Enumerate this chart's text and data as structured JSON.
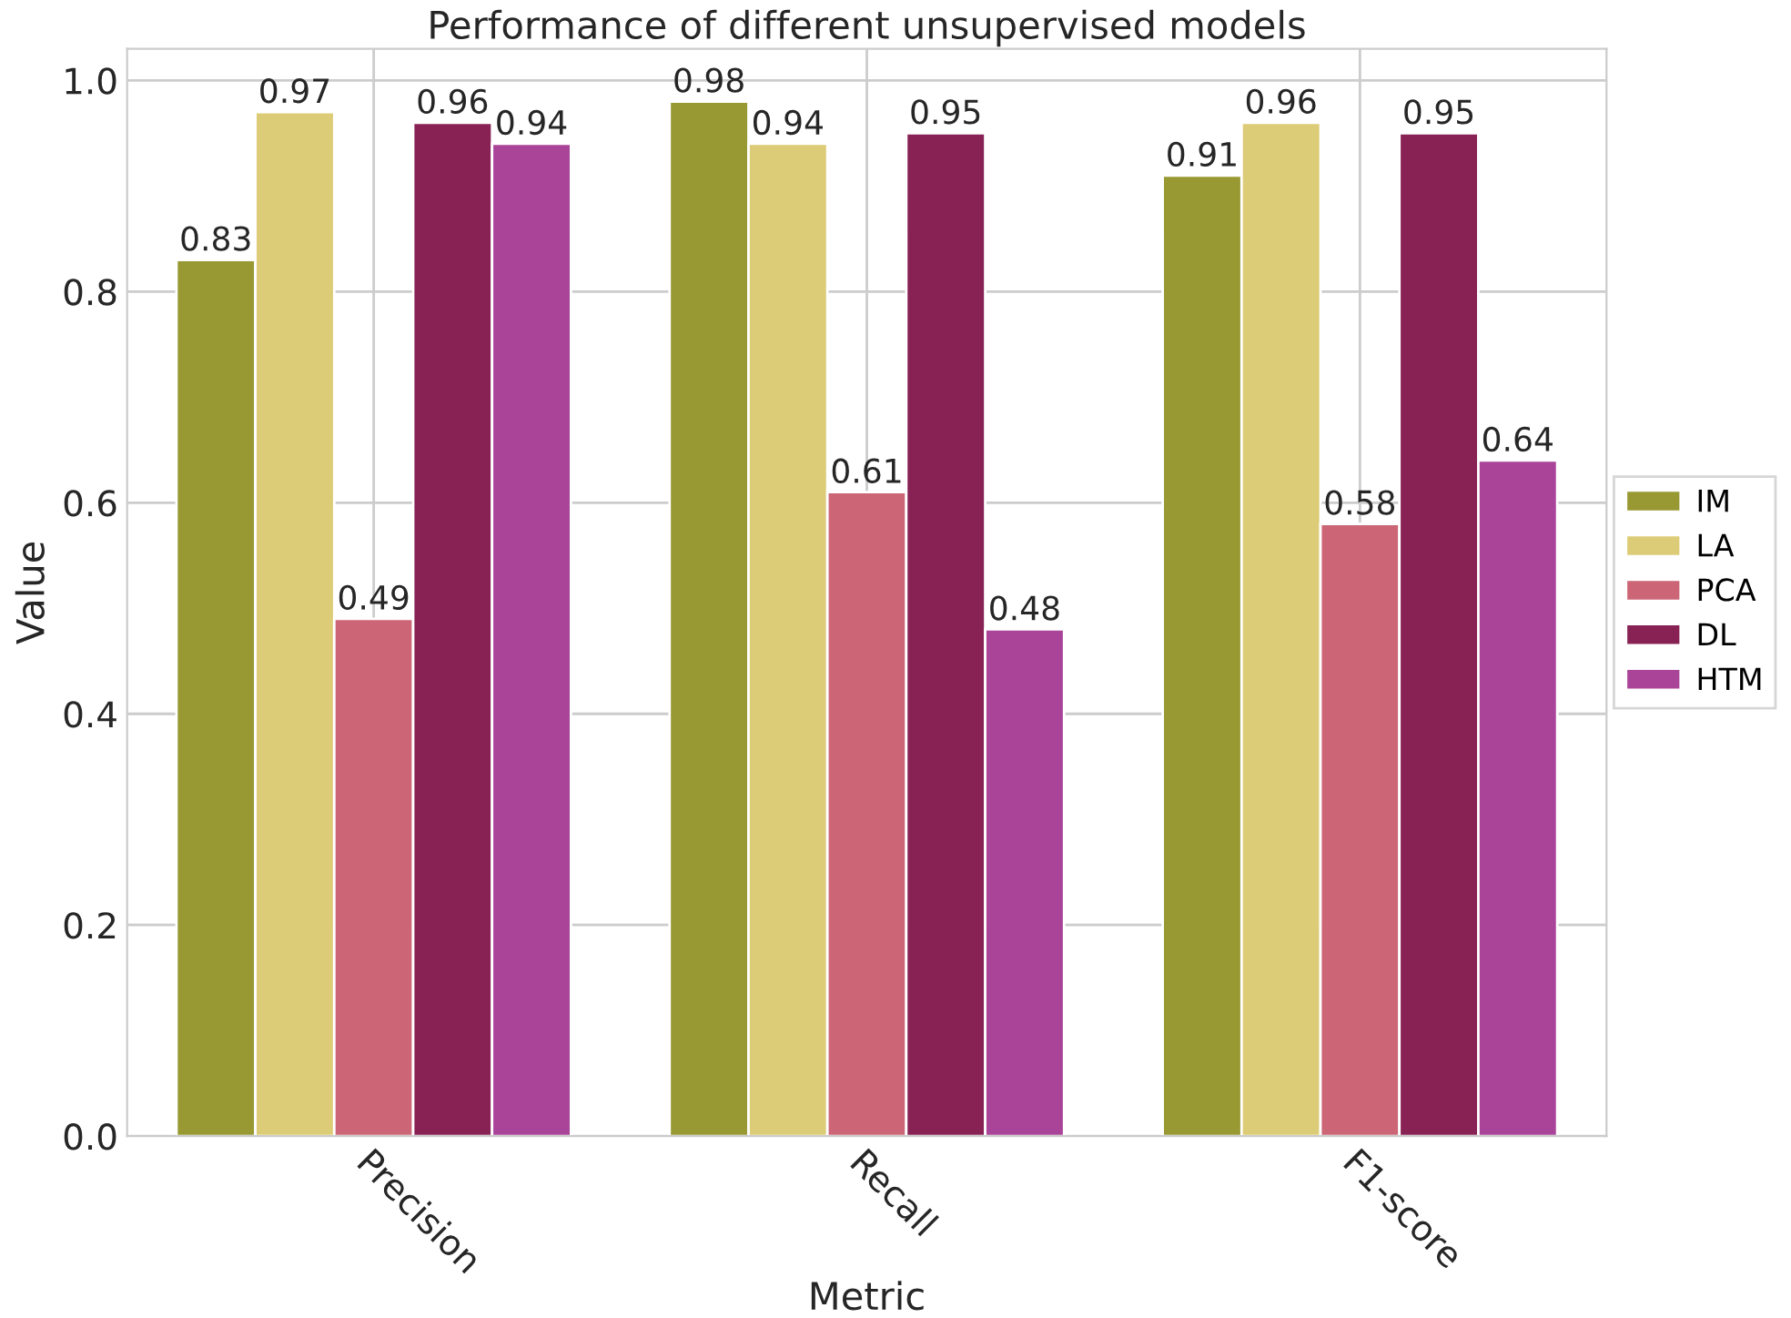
{
  "chart_data": {
    "type": "bar",
    "title": "Performance of different unsupervised models",
    "xlabel": "Metric",
    "ylabel": "Value",
    "categories": [
      "Precision",
      "Recall",
      "F1-score"
    ],
    "series": [
      {
        "name": "IM",
        "color": "#999933",
        "values": [
          0.83,
          0.98,
          0.91
        ]
      },
      {
        "name": "LA",
        "color": "#ddcc77",
        "values": [
          0.97,
          0.94,
          0.96
        ]
      },
      {
        "name": "PCA",
        "color": "#cc6677",
        "values": [
          0.49,
          0.61,
          0.58
        ]
      },
      {
        "name": "DL",
        "color": "#882255",
        "values": [
          0.96,
          0.95,
          0.95
        ]
      },
      {
        "name": "HTM",
        "color": "#aa4499",
        "values": [
          0.94,
          0.48,
          0.64
        ]
      }
    ],
    "ylim": [
      0,
      1.03
    ],
    "yticks": [
      {
        "value": 0,
        "label": "0.0"
      },
      0.2,
      0.4,
      0.6,
      0.8,
      {
        "value": 1,
        "label": "1.0"
      }
    ],
    "grid": true,
    "legend": "right",
    "data_labels": true
  }
}
